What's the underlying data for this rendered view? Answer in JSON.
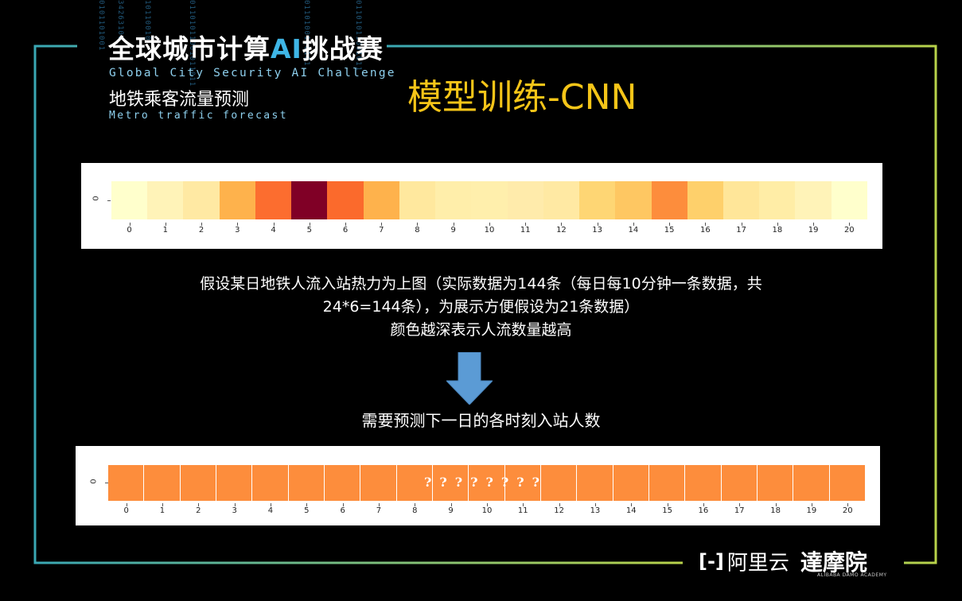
{
  "branding": {
    "logo_zh_prefix": "全球城市计算",
    "logo_zh_ai": "AI",
    "logo_zh_suffix": "挑战赛",
    "logo_en": "Global City Security AI Challenge",
    "subtitle_zh": "地铁乘客流量预测",
    "subtitle_en": "Metro traffic forecast",
    "aliyun_mark": "[-]",
    "aliyun": "阿里云",
    "damo": "達摩院",
    "damo_en": "ALIBABA DAMO ACADEMY"
  },
  "slide": {
    "title": "模型训练-CNN",
    "description_line1": "假设某日地铁人流入站热力为上图（实际数据为144条（每日每10分钟一条数据，共",
    "description_line2": "24*6=144条），为展示方便假设为21条数据）",
    "description_line3": "颜色越深表示人流数量越高",
    "predict_text": "需要预测下一日的各时刻入站人数",
    "question_marks": "????????"
  },
  "colors": {
    "background": "#000000",
    "title": "#f5c518",
    "frame_left": "#3aa8b4",
    "frame_right": "#b8d24a",
    "arrow": "#5b9bd5",
    "prediction_cell": "#fd8d3c"
  },
  "chart_data": [
    {
      "type": "heatmap",
      "y_tick_labels": [
        "0"
      ],
      "x_tick_labels": [
        "0",
        "1",
        "2",
        "3",
        "4",
        "5",
        "6",
        "7",
        "8",
        "9",
        "10",
        "11",
        "12",
        "13",
        "14",
        "15",
        "16",
        "17",
        "18",
        "19",
        "20"
      ],
      "cell_colors": [
        "#ffffcc",
        "#fff3b8",
        "#ffe9a3",
        "#feb24c",
        "#fc6d2f",
        "#800026",
        "#fb6a2c",
        "#feb24c",
        "#ffe89e",
        "#ffeeaa",
        "#ffefac",
        "#ffebab",
        "#ffe9a3",
        "#fed674",
        "#fec762",
        "#fd8d3c",
        "#fed06b",
        "#ffe699",
        "#ffeda6",
        "#fff3b8",
        "#ffffcc"
      ],
      "legend": "none"
    },
    {
      "type": "heatmap",
      "y_tick_labels": [
        "0"
      ],
      "x_tick_labels": [
        "0",
        "1",
        "2",
        "3",
        "4",
        "5",
        "6",
        "7",
        "8",
        "9",
        "10",
        "11",
        "12",
        "13",
        "14",
        "15",
        "16",
        "17",
        "18",
        "19",
        "20"
      ],
      "cell_colors": [
        "#fd8d3c",
        "#fd8d3c",
        "#fd8d3c",
        "#fd8d3c",
        "#fd8d3c",
        "#fd8d3c",
        "#fd8d3c",
        "#fd8d3c",
        "#fd8d3c",
        "#fd8d3c",
        "#fd8d3c",
        "#fd8d3c",
        "#fd8d3c",
        "#fd8d3c",
        "#fd8d3c",
        "#fd8d3c",
        "#fd8d3c",
        "#fd8d3c",
        "#fd8d3c",
        "#fd8d3c",
        "#fd8d3c"
      ],
      "legend": "none"
    }
  ]
}
